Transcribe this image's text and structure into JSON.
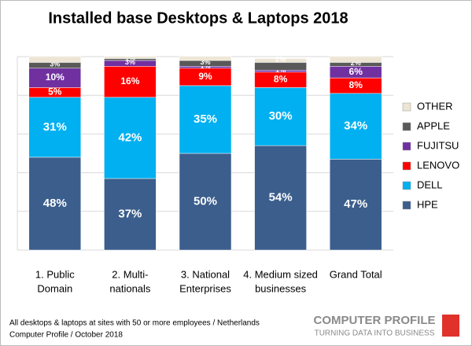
{
  "chart_data": {
    "type": "stacked-bar",
    "title": "Installed base Desktops & Laptops 2018",
    "categories": [
      [
        "1. Public",
        "Domain"
      ],
      [
        "2. Multi-",
        "nationals"
      ],
      [
        "3. National",
        "Enterprises"
      ],
      [
        "4. Medium sized",
        "businesses"
      ],
      [
        "Grand Total"
      ]
    ],
    "series": [
      {
        "name": "HPE",
        "color": "#3b5e8c",
        "values": [
          48,
          37,
          50,
          54,
          47
        ],
        "value_labels": [
          "48%",
          "37%",
          "50%",
          "54%",
          "47%"
        ]
      },
      {
        "name": "DELL",
        "color": "#00b0f0",
        "values": [
          31,
          42,
          35,
          30,
          34
        ],
        "value_labels": [
          "31%",
          "42%",
          "35%",
          "30%",
          "34%"
        ]
      },
      {
        "name": "LENOVO",
        "color": "#ff0000",
        "values": [
          5,
          16,
          9,
          8,
          8
        ],
        "value_labels": [
          "5%",
          "16%",
          "9%",
          "8%",
          "8%"
        ]
      },
      {
        "name": "FUJITSU",
        "color": "#7030a0",
        "values": [
          10,
          3,
          1,
          1,
          6
        ],
        "value_labels": [
          "10%",
          "3%",
          "1%",
          "1%",
          "6%"
        ]
      },
      {
        "name": "APPLE",
        "color": "#595959",
        "values": [
          3,
          1,
          3,
          4,
          2
        ],
        "value_labels": [
          "3%",
          "1%",
          "3%",
          null,
          "2%"
        ]
      },
      {
        "name": "OTHER",
        "color": "#ede5d3",
        "values": [
          3,
          1,
          2,
          2,
          3
        ],
        "value_labels": [
          null,
          null,
          null,
          "2%",
          null
        ]
      }
    ],
    "ylim": [
      0,
      100
    ],
    "yticks": [
      0,
      20,
      40,
      60,
      80,
      100
    ],
    "grid": true,
    "legend": "right",
    "footnotes": [
      "All desktops & laptops at sites with 50 or more employees / Netherlands",
      "Computer Profile / October 2018"
    ],
    "logo": {
      "name": "COMPUTER PROFILE",
      "tagline": "TURNING DATA INTO BUSINESS"
    }
  }
}
